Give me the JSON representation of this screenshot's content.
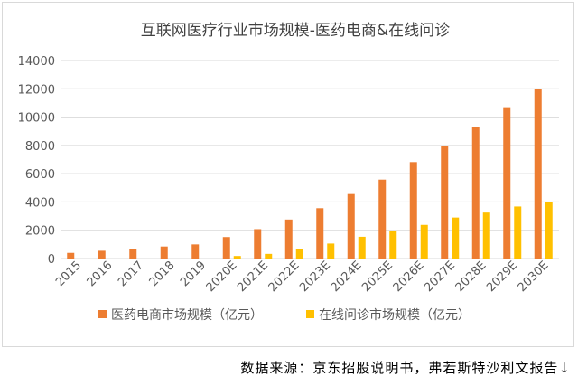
{
  "chart_data": {
    "type": "bar",
    "title": "互联网医疗行业市场规模-医药电商&在线问诊",
    "categories": [
      "2015",
      "2016",
      "2017",
      "2018",
      "2019",
      "2020E",
      "2021E",
      "2022E",
      "2023E",
      "2024E",
      "2025E",
      "2026E",
      "2027E",
      "2028E",
      "2029E",
      "2030E"
    ],
    "series": [
      {
        "name": "医药电商市场规模（亿元）",
        "color": "#ed7d31",
        "values": [
          400,
          550,
          700,
          850,
          1000,
          1520,
          2080,
          2760,
          3560,
          4560,
          5580,
          6820,
          7980,
          9300,
          10700,
          12000
        ]
      },
      {
        "name": "在线问诊市场规模（亿元）",
        "color": "#ffc000",
        "values": [
          0,
          0,
          0,
          0,
          0,
          180,
          330,
          650,
          1060,
          1540,
          1940,
          2380,
          2900,
          3250,
          3680,
          4000
        ]
      }
    ],
    "ylim": [
      0,
      14000
    ],
    "yticks": [
      0,
      2000,
      4000,
      6000,
      8000,
      10000,
      12000,
      14000
    ],
    "xlabel": "",
    "ylabel": "",
    "grid": true,
    "legend_position": "bottom"
  },
  "footer": {
    "source_text": "数据来源：京东招股说明书，弗若斯特沙利文报告↓"
  }
}
